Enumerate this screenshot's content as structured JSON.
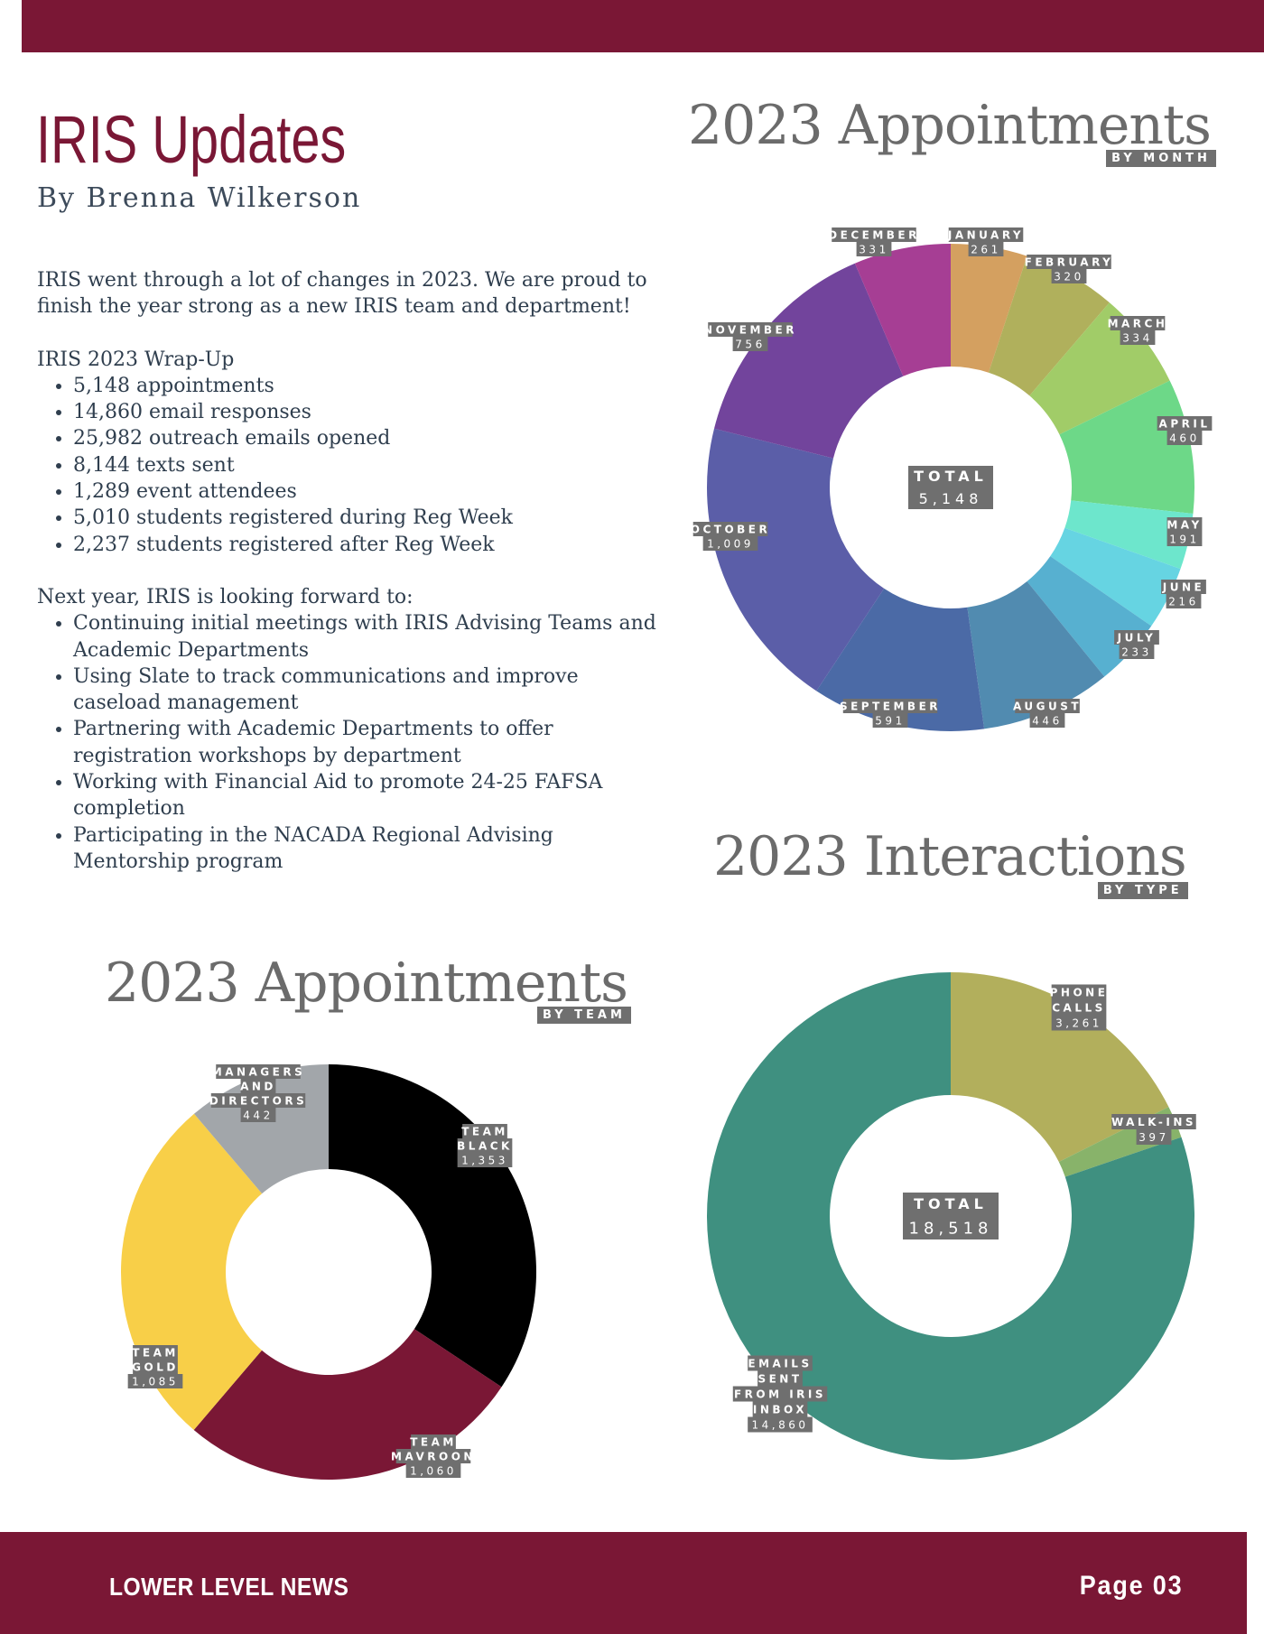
{
  "title": "IRIS Updates",
  "byline": "By Brenna Wilkerson",
  "intro": "IRIS went through a lot of changes in 2023. We are proud to finish the year strong as a new IRIS team and department!",
  "wrapup": {
    "heading": "IRIS 2023 Wrap-Up",
    "items": [
      "5,148 appointments",
      "14,860 email responses",
      "25,982 outreach emails opened",
      "8,144 texts sent",
      "1,289 event attendees",
      "5,010 students registered during Reg Week",
      "2,237 students registered after Reg Week"
    ]
  },
  "next_year": {
    "heading": "Next year, IRIS is looking forward to:",
    "items": [
      "Continuing initial meetings with IRIS Advising Teams and Academic Departments",
      "Using Slate to track communications and improve caseload management",
      "Partnering with Academic Departments to offer registration workshops by department",
      "Working with Financial Aid to promote 24-25 FAFSA completion",
      "Participating in the NACADA Regional Advising Mentorship program"
    ]
  },
  "footer": {
    "left": "LOWER LEVEL NEWS",
    "right": "Page 03"
  },
  "colors": {
    "brand": "#7a1735",
    "label_bg": "#6f6f6f"
  },
  "chart_data": [
    {
      "type": "pie",
      "title": "2023 Appointments",
      "subtitle": "BY MONTH",
      "center_label": "TOTAL",
      "center_value": "5,148",
      "slices": [
        {
          "label": "JANUARY",
          "value": 261,
          "display": "261",
          "color": "#d4a060"
        },
        {
          "label": "FEBRUARY",
          "value": 320,
          "display": "320",
          "color": "#b0b05c"
        },
        {
          "label": "MARCH",
          "value": 334,
          "display": "334",
          "color": "#a1cc68"
        },
        {
          "label": "APRIL",
          "value": 460,
          "display": "460",
          "color": "#6dd888"
        },
        {
          "label": "MAY",
          "value": 191,
          "display": "191",
          "color": "#6de6cc"
        },
        {
          "label": "JUNE",
          "value": 216,
          "display": "216",
          "color": "#66d4e2"
        },
        {
          "label": "JULY",
          "value": 233,
          "display": "233",
          "color": "#57b0d0"
        },
        {
          "label": "AUGUST",
          "value": 446,
          "display": "446",
          "color": "#518bb0"
        },
        {
          "label": "SEPTEMBER",
          "value": 591,
          "display": "591",
          "color": "#4b6aa6"
        },
        {
          "label": "OCTOBER",
          "value": 1009,
          "display": "1,009",
          "color": "#5b5ea8"
        },
        {
          "label": "NOVEMBER",
          "value": 756,
          "display": "756",
          "color": "#72449c"
        },
        {
          "label": "DECEMBER",
          "value": 331,
          "display": "331",
          "color": "#a63e94"
        }
      ]
    },
    {
      "type": "pie",
      "title": "2023 Interactions",
      "subtitle": "BY TYPE",
      "center_label": "TOTAL",
      "center_value": "18,518",
      "slices": [
        {
          "label": "PHONE CALLS",
          "value": 3261,
          "display": "3,261",
          "color": "#b2af5c"
        },
        {
          "label": "WALK-INS",
          "value": 397,
          "display": "397",
          "color": "#88b36a"
        },
        {
          "label": "EMAILS SENT FROM IRIS INBOX",
          "value": 14860,
          "display": "14,860",
          "color": "#3f9080"
        }
      ]
    },
    {
      "type": "pie",
      "title": "2023 Appointments",
      "subtitle": "BY TEAM",
      "slices": [
        {
          "label": "TEAM BLACK",
          "value": 1353,
          "display": "1,353",
          "color": "#000000"
        },
        {
          "label": "TEAM MAVROON",
          "value": 1060,
          "display": "1,060",
          "color": "#7a1735"
        },
        {
          "label": "TEAM GOLD",
          "value": 1085,
          "display": "1,085",
          "color": "#f8cf48"
        },
        {
          "label": "MANAGERS AND DIRECTORS",
          "value": 442,
          "display": "442",
          "color": "#a2a6aa"
        }
      ]
    }
  ]
}
